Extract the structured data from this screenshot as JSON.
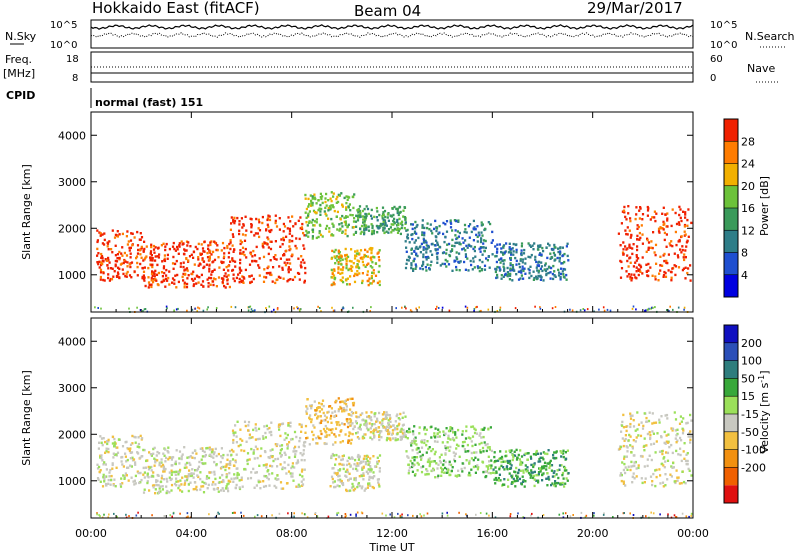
{
  "header": {
    "radar": "Hokkaido East (fitACF)",
    "beam": "Beam 04",
    "date": "29/Mar/2017"
  },
  "nsky_panel": {
    "left_label": "N.Sky",
    "right_label": "N.Search",
    "left_ticks": [
      "10^5",
      "10^0"
    ],
    "right_ticks": [
      "10^5",
      "10^0"
    ]
  },
  "freq_panel": {
    "left_label": "Freq.",
    "left_unit": "[MHz]",
    "right_label": "Nave",
    "left_ticks": [
      "18",
      "8"
    ],
    "right_ticks": [
      "60",
      "0"
    ]
  },
  "cpid_panel": {
    "label": "CPID",
    "value": "normal (fast) 151"
  },
  "chart_data": [
    {
      "type": "heatmap",
      "name": "power",
      "x": [
        "00:00",
        "04:00",
        "08:00",
        "12:00",
        "16:00",
        "20:00",
        "00:00"
      ],
      "xlabel": "Time UT",
      "ylabel": "Slant Range [km]",
      "yticks": [
        "1000",
        "2000",
        "3000",
        "4000"
      ],
      "ylim": [
        200,
        4500
      ],
      "xlim_hours": [
        0,
        24
      ],
      "colorbar": {
        "label": "Power [dB]",
        "ticks": [
          "4",
          "8",
          "12",
          "16",
          "20",
          "24",
          "28"
        ],
        "range": [
          0,
          32
        ],
        "colors": [
          "#0000e0",
          "#1f4fd0",
          "#2e7d88",
          "#3a9a5a",
          "#6cc23a",
          "#f2b000",
          "#ff7c00",
          "#f02000"
        ]
      },
      "regions": [
        {
          "t0": 0.2,
          "t1": 2.0,
          "r0": 900,
          "r1": 2000,
          "level": 7
        },
        {
          "t0": 2.0,
          "t1": 5.5,
          "r0": 750,
          "r1": 1750,
          "level": 7
        },
        {
          "t0": 5.5,
          "t1": 8.5,
          "r0": 850,
          "r1": 2300,
          "level": 7
        },
        {
          "t0": 8.5,
          "t1": 10.5,
          "r0": 1800,
          "r1": 2800,
          "level": 4
        },
        {
          "t0": 9.5,
          "t1": 11.5,
          "r0": 800,
          "r1": 1600,
          "level": 5
        },
        {
          "t0": 10.5,
          "t1": 12.5,
          "r0": 1900,
          "r1": 2500,
          "level": 3
        },
        {
          "t0": 12.5,
          "t1": 16.0,
          "r0": 1100,
          "r1": 2200,
          "level": 2
        },
        {
          "t0": 16.0,
          "t1": 19.0,
          "r0": 900,
          "r1": 1700,
          "level": 2
        },
        {
          "t0": 21.0,
          "t1": 23.9,
          "r0": 900,
          "r1": 2500,
          "level": 7
        }
      ]
    },
    {
      "type": "heatmap",
      "name": "velocity",
      "x": [
        "00:00",
        "04:00",
        "08:00",
        "12:00",
        "16:00",
        "20:00",
        "00:00"
      ],
      "xlabel": "Time UT",
      "ylabel": "Slant Range [km]",
      "yticks": [
        "1000",
        "2000",
        "3000",
        "4000"
      ],
      "ylim": [
        200,
        4500
      ],
      "xlim_hours": [
        0,
        24
      ],
      "colorbar": {
        "label": "Velocity [m s^-1]",
        "ticks": [
          "200",
          "100",
          "50",
          "15",
          "-15",
          "-50",
          "-100",
          "-200"
        ],
        "colors": [
          "#1010c0",
          "#2b4fb8",
          "#2e7d7d",
          "#38a83a",
          "#9be05a",
          "#c8c8c0",
          "#f2c040",
          "#f29010",
          "#f06000",
          "#e01010"
        ]
      },
      "regions": [
        {
          "t0": 0.2,
          "t1": 2.0,
          "r0": 900,
          "r1": 2000,
          "level": 5
        },
        {
          "t0": 2.0,
          "t1": 5.5,
          "r0": 750,
          "r1": 1750,
          "level": 5
        },
        {
          "t0": 5.5,
          "t1": 8.5,
          "r0": 850,
          "r1": 2300,
          "level": 5
        },
        {
          "t0": 8.5,
          "t1": 10.5,
          "r0": 1800,
          "r1": 2800,
          "level": 6
        },
        {
          "t0": 9.5,
          "t1": 11.5,
          "r0": 800,
          "r1": 1600,
          "level": 5
        },
        {
          "t0": 10.5,
          "t1": 12.5,
          "r0": 1900,
          "r1": 2500,
          "level": 5
        },
        {
          "t0": 12.5,
          "t1": 16.0,
          "r0": 1100,
          "r1": 2200,
          "level": 4
        },
        {
          "t0": 16.0,
          "t1": 19.0,
          "r0": 900,
          "r1": 1700,
          "level": 3
        },
        {
          "t0": 21.0,
          "t1": 23.9,
          "r0": 900,
          "r1": 2500,
          "level": 5
        }
      ]
    }
  ]
}
